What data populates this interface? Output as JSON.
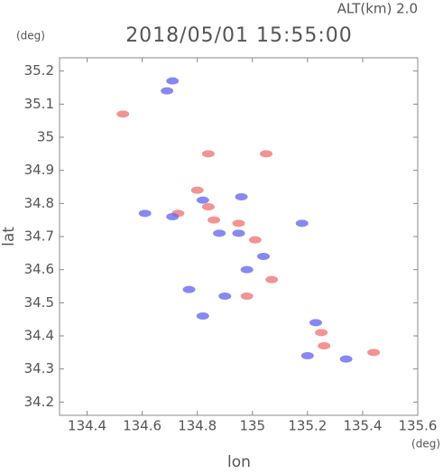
{
  "chart_data": {
    "type": "scatter",
    "title": "2018/05/01 15:55:00",
    "subtitle": "ALT(km)  2.0",
    "y_unit": "(deg)",
    "x_unit": "(deg)",
    "x_label": "lon",
    "y_label": "lat",
    "xlim": [
      134.3,
      135.6
    ],
    "ylim": [
      34.16,
      35.24
    ],
    "xticks": [
      134.4,
      134.6,
      134.8,
      135.0,
      135.2,
      135.4,
      135.6
    ],
    "yticks": [
      34.2,
      34.3,
      34.4,
      34.5,
      34.6,
      34.7,
      34.8,
      34.9,
      35.0,
      35.1,
      35.2
    ],
    "series": [
      {
        "color": "#f07878",
        "x": [
          134.53,
          134.8,
          134.86,
          134.95,
          134.98,
          135.07,
          135.01,
          135.25,
          135.26,
          135.44,
          134.84,
          134.73,
          135.05,
          134.84
        ],
        "values": [
          35.07,
          34.84,
          34.75,
          34.74,
          34.52,
          34.57,
          34.69,
          34.41,
          34.37,
          34.35,
          34.79,
          34.77,
          34.95,
          34.95
        ]
      },
      {
        "color": "#6a6af0",
        "x": [
          134.71,
          134.69,
          134.61,
          134.71,
          134.82,
          134.88,
          134.95,
          134.98,
          135.04,
          134.9,
          134.82,
          134.77,
          135.23,
          135.2,
          135.34,
          134.96,
          135.18
        ],
        "values": [
          35.17,
          35.14,
          34.77,
          34.76,
          34.81,
          34.71,
          34.71,
          34.6,
          34.64,
          34.52,
          34.46,
          34.54,
          34.44,
          34.34,
          34.33,
          34.82,
          34.74
        ]
      }
    ]
  }
}
